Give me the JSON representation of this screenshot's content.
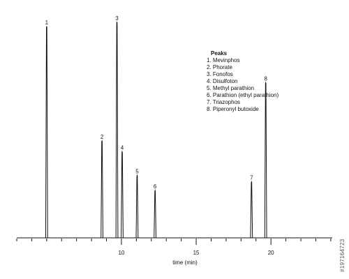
{
  "chart_data": {
    "type": "line",
    "xlabel": "time (min)",
    "xlim": [
      3.0,
      24.1
    ],
    "ylim": [
      0,
      100
    ],
    "x_ticks": [
      10,
      15,
      20
    ],
    "peaks": [
      {
        "label": "1",
        "x": 5.0,
        "height": 98
      },
      {
        "label": "2",
        "x": 8.7,
        "height": 45
      },
      {
        "label": "3",
        "x": 9.7,
        "height": 100
      },
      {
        "label": "4",
        "x": 10.05,
        "height": 40
      },
      {
        "label": "5",
        "x": 11.05,
        "height": 29
      },
      {
        "label": "6",
        "x": 12.25,
        "height": 22
      },
      {
        "label": "7",
        "x": 18.7,
        "height": 26
      },
      {
        "label": "8",
        "x": 19.65,
        "height": 72
      }
    ],
    "legend": {
      "title": "Peaks",
      "items": [
        "1. Mevinphos",
        "2. Phorate",
        "3. Fonofos",
        "4. Disulfoton",
        "5. Methyl parathion",
        "6. Parathion (ethyl parathion)",
        "7. Triazophos",
        "8. Piperonyl butoxide"
      ]
    }
  },
  "watermark": "#197164723"
}
